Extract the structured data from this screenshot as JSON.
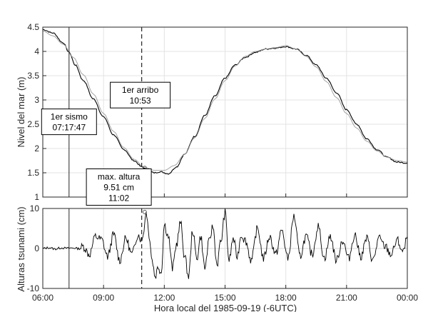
{
  "chart_data": [
    {
      "type": "line",
      "ylabel": "Nivel del mar (m)",
      "xlim_hours": [
        6,
        24
      ],
      "ylim": [
        1,
        4.5
      ],
      "y_ticks": [
        "1",
        "1.5",
        "2",
        "2.5",
        "3",
        "3.5",
        "4",
        "4.5"
      ],
      "grid": true,
      "series": [
        {
          "kind": "observed",
          "color": "#000000",
          "x_hours": [
            6.0,
            6.5,
            7.0,
            7.3,
            7.6,
            8.0,
            8.5,
            9.0,
            9.5,
            10.0,
            10.5,
            10.9,
            11.2,
            11.5,
            11.8,
            12.2,
            12.6,
            13.0,
            13.5,
            14.0,
            14.5,
            15.0,
            15.5,
            16.0,
            16.5,
            17.0,
            17.5,
            18.0,
            18.5,
            19.0,
            19.5,
            20.0,
            20.5,
            21.0,
            21.5,
            22.0,
            22.5,
            23.0,
            23.5,
            24.0
          ],
          "values": [
            4.45,
            4.38,
            4.18,
            3.98,
            3.72,
            3.4,
            3.02,
            2.65,
            2.28,
            1.98,
            1.75,
            1.62,
            1.55,
            1.5,
            1.52,
            1.48,
            1.62,
            1.88,
            2.25,
            2.68,
            3.08,
            3.45,
            3.72,
            3.88,
            3.98,
            4.05,
            4.07,
            4.1,
            4.05,
            3.92,
            3.72,
            3.45,
            3.15,
            2.8,
            2.5,
            2.2,
            1.98,
            1.82,
            1.72,
            1.7
          ]
        },
        {
          "kind": "predicted",
          "color": "#9a9a9a",
          "x_hours": [
            6.0,
            6.5,
            7.0,
            7.5,
            8.0,
            8.5,
            9.0,
            9.5,
            10.0,
            10.5,
            11.0,
            11.5,
            12.0,
            12.5,
            13.0,
            13.5,
            14.0,
            14.5,
            15.0,
            15.5,
            16.0,
            16.5,
            17.0,
            17.5,
            18.0,
            18.5,
            19.0,
            19.5,
            20.0,
            20.5,
            21.0,
            21.5,
            22.0,
            22.5,
            23.0,
            23.5,
            24.0
          ],
          "values": [
            4.42,
            4.32,
            4.15,
            3.88,
            3.52,
            3.12,
            2.72,
            2.35,
            2.02,
            1.78,
            1.62,
            1.55,
            1.55,
            1.65,
            1.88,
            2.22,
            2.62,
            3.02,
            3.4,
            3.7,
            3.9,
            4.0,
            4.05,
            4.08,
            4.12,
            4.05,
            3.9,
            3.68,
            3.38,
            3.05,
            2.72,
            2.42,
            2.15,
            1.95,
            1.82,
            1.75,
            1.72
          ]
        }
      ],
      "annotations": [
        {
          "lines": [
            "1er sismo",
            "07:17:47"
          ],
          "x_hours": 7.2963,
          "y": 2.55
        },
        {
          "lines": [
            "1er arribo",
            "10:53"
          ],
          "x_hours": 10.8833,
          "y": 3.1
        }
      ],
      "max_marker": {
        "x_hours": 11.0333,
        "y": 1.6
      }
    },
    {
      "type": "line",
      "xlabel": "Hora local del 1985-09-19 (-6UTC)",
      "ylabel": "Alturas tsunami (cm)",
      "xlim_hours": [
        6,
        24
      ],
      "ylim": [
        -10,
        10
      ],
      "y_ticks": [
        "-10",
        "0",
        "10"
      ],
      "x_tick_labels": [
        "06:00",
        "09:00",
        "12:00",
        "15:00",
        "18:00",
        "21:00",
        "00:00"
      ],
      "x_tick_hours": [
        6,
        9,
        12,
        15,
        18,
        21,
        24
      ],
      "grid": true,
      "series": [
        {
          "kind": "residual",
          "color": "#000000",
          "x_hours": [
            6.0,
            6.3,
            6.6,
            6.9,
            7.2,
            7.5,
            7.8,
            8.0,
            8.3,
            8.6,
            8.9,
            9.2,
            9.5,
            9.8,
            10.1,
            10.4,
            10.7,
            10.9,
            11.0,
            11.1,
            11.25,
            11.4,
            11.55,
            11.7,
            11.85,
            12.0,
            12.2,
            12.4,
            12.6,
            12.8,
            13.0,
            13.2,
            13.4,
            13.6,
            13.8,
            14.0,
            14.2,
            14.4,
            14.6,
            14.8,
            15.0,
            15.2,
            15.4,
            15.6,
            15.8,
            16.0,
            16.3,
            16.6,
            16.9,
            17.2,
            17.5,
            17.8,
            18.1,
            18.4,
            18.7,
            19.0,
            19.3,
            19.6,
            19.9,
            20.2,
            20.5,
            20.8,
            21.1,
            21.4,
            21.7,
            22.0,
            22.3,
            22.6,
            22.9,
            23.2,
            23.5,
            23.8,
            24.0
          ],
          "values": [
            0.0,
            0.8,
            -0.5,
            0.6,
            0.2,
            0.5,
            -0.2,
            0.5,
            -1.5,
            3.0,
            2.2,
            -2.0,
            3.5,
            -3.0,
            2.5,
            -1.5,
            3.5,
            2.0,
            5.0,
            9.5,
            3.5,
            -3.0,
            -7.0,
            -4.5,
            -6.0,
            6.0,
            3.0,
            -5.0,
            1.0,
            6.5,
            -2.0,
            -7.0,
            4.5,
            -2.5,
            3.0,
            -5.0,
            1.5,
            5.5,
            -4.0,
            2.0,
            9.0,
            -3.0,
            2.5,
            -2.0,
            3.5,
            2.0,
            -3.0,
            5.0,
            -2.5,
            3.0,
            -1.5,
            4.5,
            -2.5,
            8.0,
            -2.0,
            3.0,
            -1.5,
            5.5,
            -2.5,
            3.0,
            -3.0,
            2.0,
            -2.5,
            3.5,
            -2.0,
            2.5,
            -3.0,
            2.5,
            0.5,
            -1.5,
            2.0,
            -1.0,
            3.0
          ]
        }
      ],
      "annotations": [
        {
          "lines": [
            "max. altura",
            "9.51 cm",
            "11:02"
          ],
          "x_hours": 11.0333
        }
      ],
      "max_marker": {
        "x_hours": 11.0333,
        "y": 9.51
      }
    }
  ]
}
